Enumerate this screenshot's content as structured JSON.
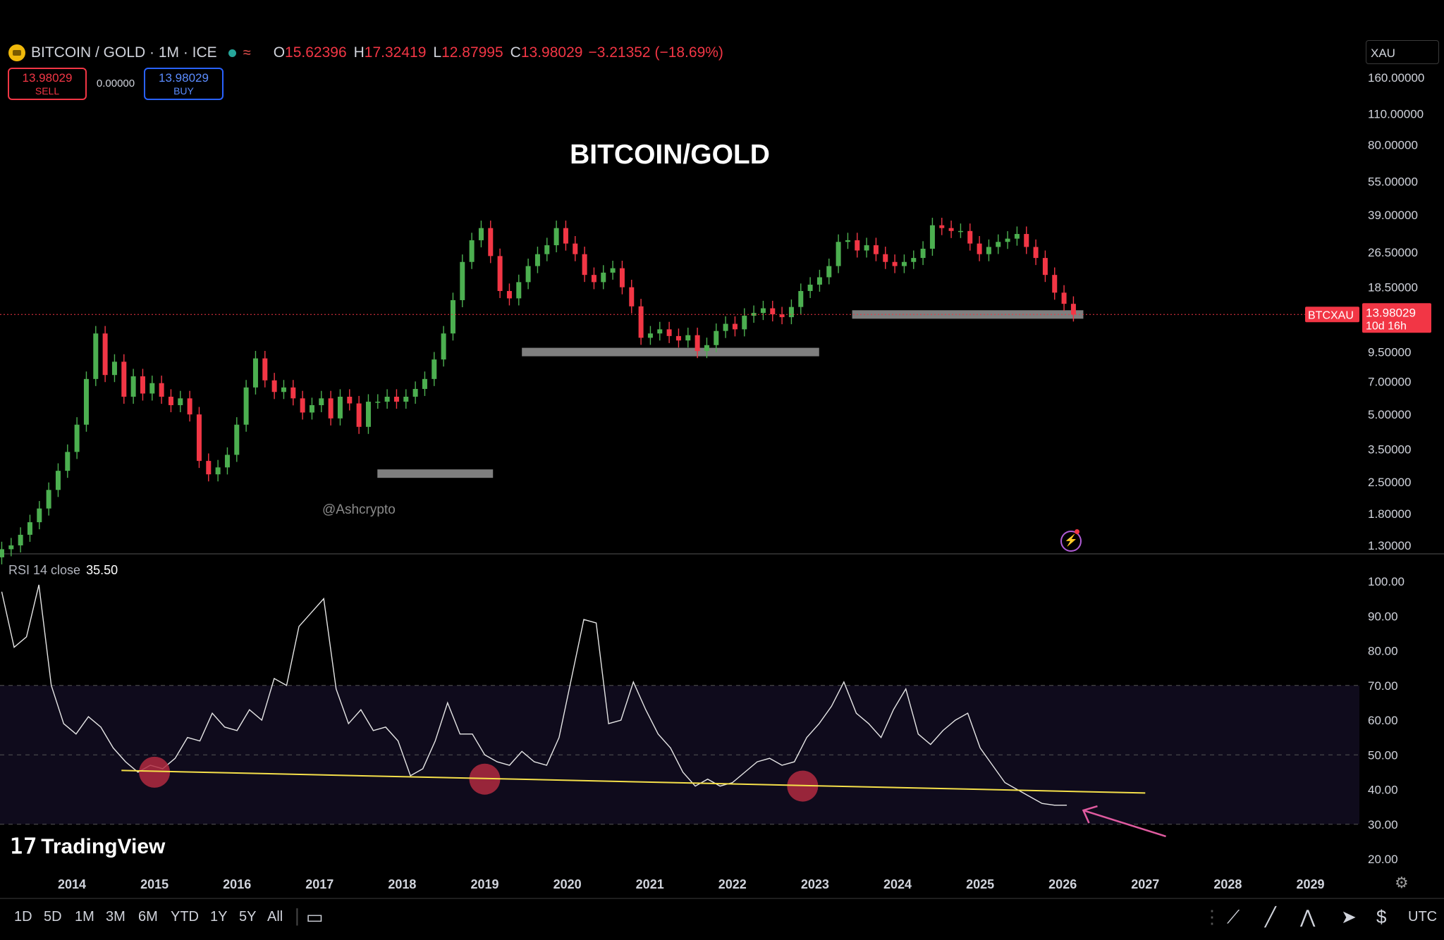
{
  "header": {
    "symbol_line": "BITCOIN / GOLD · 1M · ICE",
    "ohlc": [
      {
        "key": "O",
        "value": "15.62396"
      },
      {
        "key": "H",
        "value": "17.32419"
      },
      {
        "key": "L",
        "value": "12.87995"
      },
      {
        "key": "C",
        "value": "13.98029"
      }
    ],
    "change": "−3.21352 (−18.69%)",
    "sell": {
      "price": "13.98029",
      "label": "SELL"
    },
    "buy": {
      "price": "13.98029",
      "label": "BUY"
    },
    "spread": "0.00000",
    "scale_unit": "XAU"
  },
  "watermark": "@Ashcrypto",
  "rsi_panel": {
    "label": "RSI 14 close",
    "value": "35.50"
  },
  "brand": "TradingView",
  "toolbar": {
    "timeframes": [
      "1D",
      "5D",
      "1M",
      "3M",
      "6M",
      "YTD",
      "1Y",
      "5Y",
      "All"
    ],
    "timezone": "UTC",
    "icons": [
      "drag-handle-icon",
      "trend-line-icon",
      "line-tool-icon",
      "pattern-tool-icon",
      "cursor-icon",
      "currency-icon"
    ]
  },
  "colors": {
    "up": "#26a69a",
    "up_candle": "#4caf50",
    "down": "#f23645",
    "support_zone": "#8a8a8a",
    "rsi_line": "#e6e6e6",
    "trend_line": "#f5e04a",
    "rsi_band": "#0f0b1c",
    "marker": "#b02a3f",
    "arrow": "#e05ba0"
  },
  "chart_data": [
    {
      "type": "candlestick",
      "title": "BITCOIN/GOLD",
      "scale": "log",
      "y_ticks": [
        1.3,
        1.8,
        2.5,
        3.5,
        5.0,
        7.0,
        9.5,
        13.5,
        18.5,
        26.5,
        39.0,
        55.0,
        80.0,
        110.0,
        160.0
      ],
      "y_tick_labels": [
        "1.30000",
        "1.80000",
        "2.50000",
        "3.50000",
        "5.00000",
        "7.00000",
        "9.50000",
        "",
        "18.50000",
        "26.50000",
        "39.00000",
        "55.00000",
        "80.00000",
        "110.00000",
        "160.00000"
      ],
      "x_ticks": [
        2014,
        2015,
        2016,
        2017,
        2018,
        2019,
        2020,
        2021,
        2022,
        2023,
        2024,
        2025,
        2026,
        2027,
        2028,
        2029
      ],
      "last_price": {
        "value": 13.98029,
        "symbol": "BTCXAU",
        "label": "13.98029",
        "countdown": "10d 16h"
      },
      "support_zones": [
        {
          "x_start": 2017.7,
          "x_end": 2019.1,
          "y": 2.72
        },
        {
          "x_start": 2019.45,
          "x_end": 2023.05,
          "y": 9.5
        },
        {
          "x_start": 2023.45,
          "x_end": 2026.25,
          "y": 13.98
        }
      ],
      "candles_close": [
        1.25,
        1.3,
        1.45,
        1.65,
        1.9,
        2.3,
        2.8,
        3.4,
        4.5,
        7.2,
        11.5,
        7.5,
        8.6,
        6.0,
        7.4,
        6.2,
        6.9,
        6.0,
        5.5,
        5.9,
        5.0,
        3.1,
        2.7,
        2.9,
        3.3,
        4.5,
        6.6,
        8.9,
        7.1,
        6.3,
        6.6,
        5.9,
        5.1,
        5.5,
        5.9,
        4.8,
        6.0,
        5.6,
        4.4,
        5.7,
        5.7,
        6.0,
        5.7,
        6.0,
        6.5,
        7.2,
        8.8,
        11.5,
        16.2,
        24.0,
        30.0,
        34.0,
        25.5,
        17.8,
        16.5,
        19.5,
        23.0,
        26.0,
        28.5,
        34.0,
        29.0,
        26.0,
        21.0,
        19.5,
        21.5,
        22.5,
        18.5,
        15.2,
        11.0,
        11.5,
        12.0,
        11.2,
        10.7,
        11.3,
        9.6,
        10.2,
        11.8,
        12.7,
        12.0,
        13.8,
        14.2,
        14.9,
        14.0,
        13.6,
        15.1,
        17.8,
        19.0,
        20.5,
        23.0,
        29.5,
        30.0,
        27.0,
        28.5,
        26.0,
        24.0,
        23.0,
        24.0,
        25.0,
        27.5,
        35.0,
        34.0,
        33.0,
        33.0,
        29.0,
        26.0,
        28.0,
        29.5,
        30.5,
        32.0,
        28.0,
        25.0,
        21.0,
        17.5,
        15.6,
        13.98
      ]
    },
    {
      "type": "line",
      "name": "RSI 14 close",
      "scale": "linear",
      "ylim": [
        20,
        100
      ],
      "y_ticks": [
        20,
        30,
        40,
        50,
        60,
        70,
        80,
        90,
        100
      ],
      "y_tick_labels": [
        "20.00",
        "30.00",
        "40.00",
        "50.00",
        "60.00",
        "70.00",
        "80.00",
        "90.00",
        "100.00"
      ],
      "bands": [
        30,
        50,
        70
      ],
      "x": [
        2013.15,
        2013.3,
        2013.45,
        2013.6,
        2013.75,
        2013.9,
        2014.05,
        2014.2,
        2014.35,
        2014.5,
        2014.65,
        2014.8,
        2014.95,
        2015.1,
        2015.25,
        2015.4,
        2015.55,
        2015.7,
        2015.85,
        2016.0,
        2016.15,
        2016.3,
        2016.45,
        2016.6,
        2016.75,
        2016.9,
        2017.05,
        2017.2,
        2017.35,
        2017.5,
        2017.65,
        2017.8,
        2017.95,
        2018.1,
        2018.25,
        2018.4,
        2018.55,
        2018.7,
        2018.85,
        2019.0,
        2019.15,
        2019.3,
        2019.45,
        2019.6,
        2019.75,
        2019.9,
        2020.05,
        2020.2,
        2020.35,
        2020.5,
        2020.65,
        2020.8,
        2020.95,
        2021.1,
        2021.25,
        2021.4,
        2021.55,
        2021.7,
        2021.85,
        2022.0,
        2022.15,
        2022.3,
        2022.45,
        2022.6,
        2022.75,
        2022.9,
        2023.05,
        2023.2,
        2023.35,
        2023.5,
        2023.65,
        2023.8,
        2023.95,
        2024.1,
        2024.25,
        2024.4,
        2024.55,
        2024.7,
        2024.85,
        2025.0,
        2025.15,
        2025.3,
        2025.45,
        2025.6,
        2025.75,
        2025.9,
        2026.05
      ],
      "values": [
        97,
        81,
        84,
        99,
        70,
        59,
        56,
        61,
        58,
        52,
        48,
        45,
        47,
        46,
        49,
        55,
        54,
        62,
        58,
        57,
        63,
        60,
        72,
        70,
        87,
        91,
        95,
        69,
        59,
        63,
        57,
        58,
        54,
        44,
        46,
        54,
        65,
        56,
        56,
        50,
        48,
        47,
        51,
        48,
        47,
        55,
        72,
        89,
        88,
        59,
        60,
        71,
        63,
        56,
        52,
        45,
        41,
        43,
        41,
        42,
        45,
        48,
        49,
        47,
        48,
        55,
        59,
        64,
        71,
        62,
        59,
        55,
        63,
        69,
        56,
        53,
        57,
        60,
        62,
        52,
        47,
        42,
        40,
        38,
        36,
        35.5,
        35.5
      ],
      "trendline": {
        "x_start": 2014.6,
        "x_end": 2027.0,
        "y_start": 45.5,
        "y_end": 39.0
      },
      "markers": [
        {
          "x": 2015.0,
          "y": 45.0
        },
        {
          "x": 2019.0,
          "y": 43.0
        },
        {
          "x": 2022.85,
          "y": 41.0
        }
      ],
      "arrow": {
        "from_x": 2027.25,
        "from_y": 26.5,
        "to_x": 2026.25,
        "to_y": 34.0
      }
    }
  ]
}
